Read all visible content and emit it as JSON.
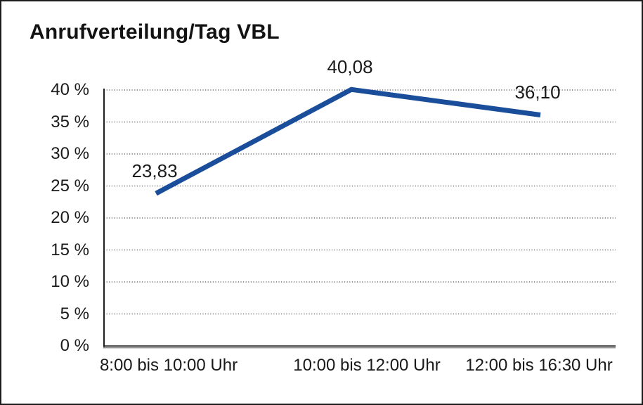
{
  "window": {
    "background": "#ffffff",
    "frame_border_color": "#1c1c1c"
  },
  "chart_data": {
    "type": "line",
    "title": "Anrufverteilung/Tag VBL",
    "categories": [
      "8:00 bis 10:00 Uhr",
      "10:00 bis 12:00 Uhr",
      "12:00 bis 16:30 Uhr"
    ],
    "values": [
      23.83,
      40.08,
      36.1
    ],
    "value_labels": [
      "23,83",
      "40,08",
      "36,10"
    ],
    "xlabel": "",
    "ylabel": "",
    "ylim": [
      0,
      40
    ],
    "y_tick_step": 5,
    "y_tick_labels": [
      "0 %",
      "5 %",
      "10 %",
      "15 %",
      "20 %",
      "25 %",
      "30 %",
      "35 %",
      "40 %"
    ],
    "grid": "horizontal dotted",
    "legend": "none",
    "line_color": "#1a4e9b",
    "line_width": 7,
    "text_color": "#1a1a1a",
    "axis_color": "#1f1f1f",
    "x_axis_shadow_color": "#8c8c8c",
    "gridline_color": "#555555"
  }
}
